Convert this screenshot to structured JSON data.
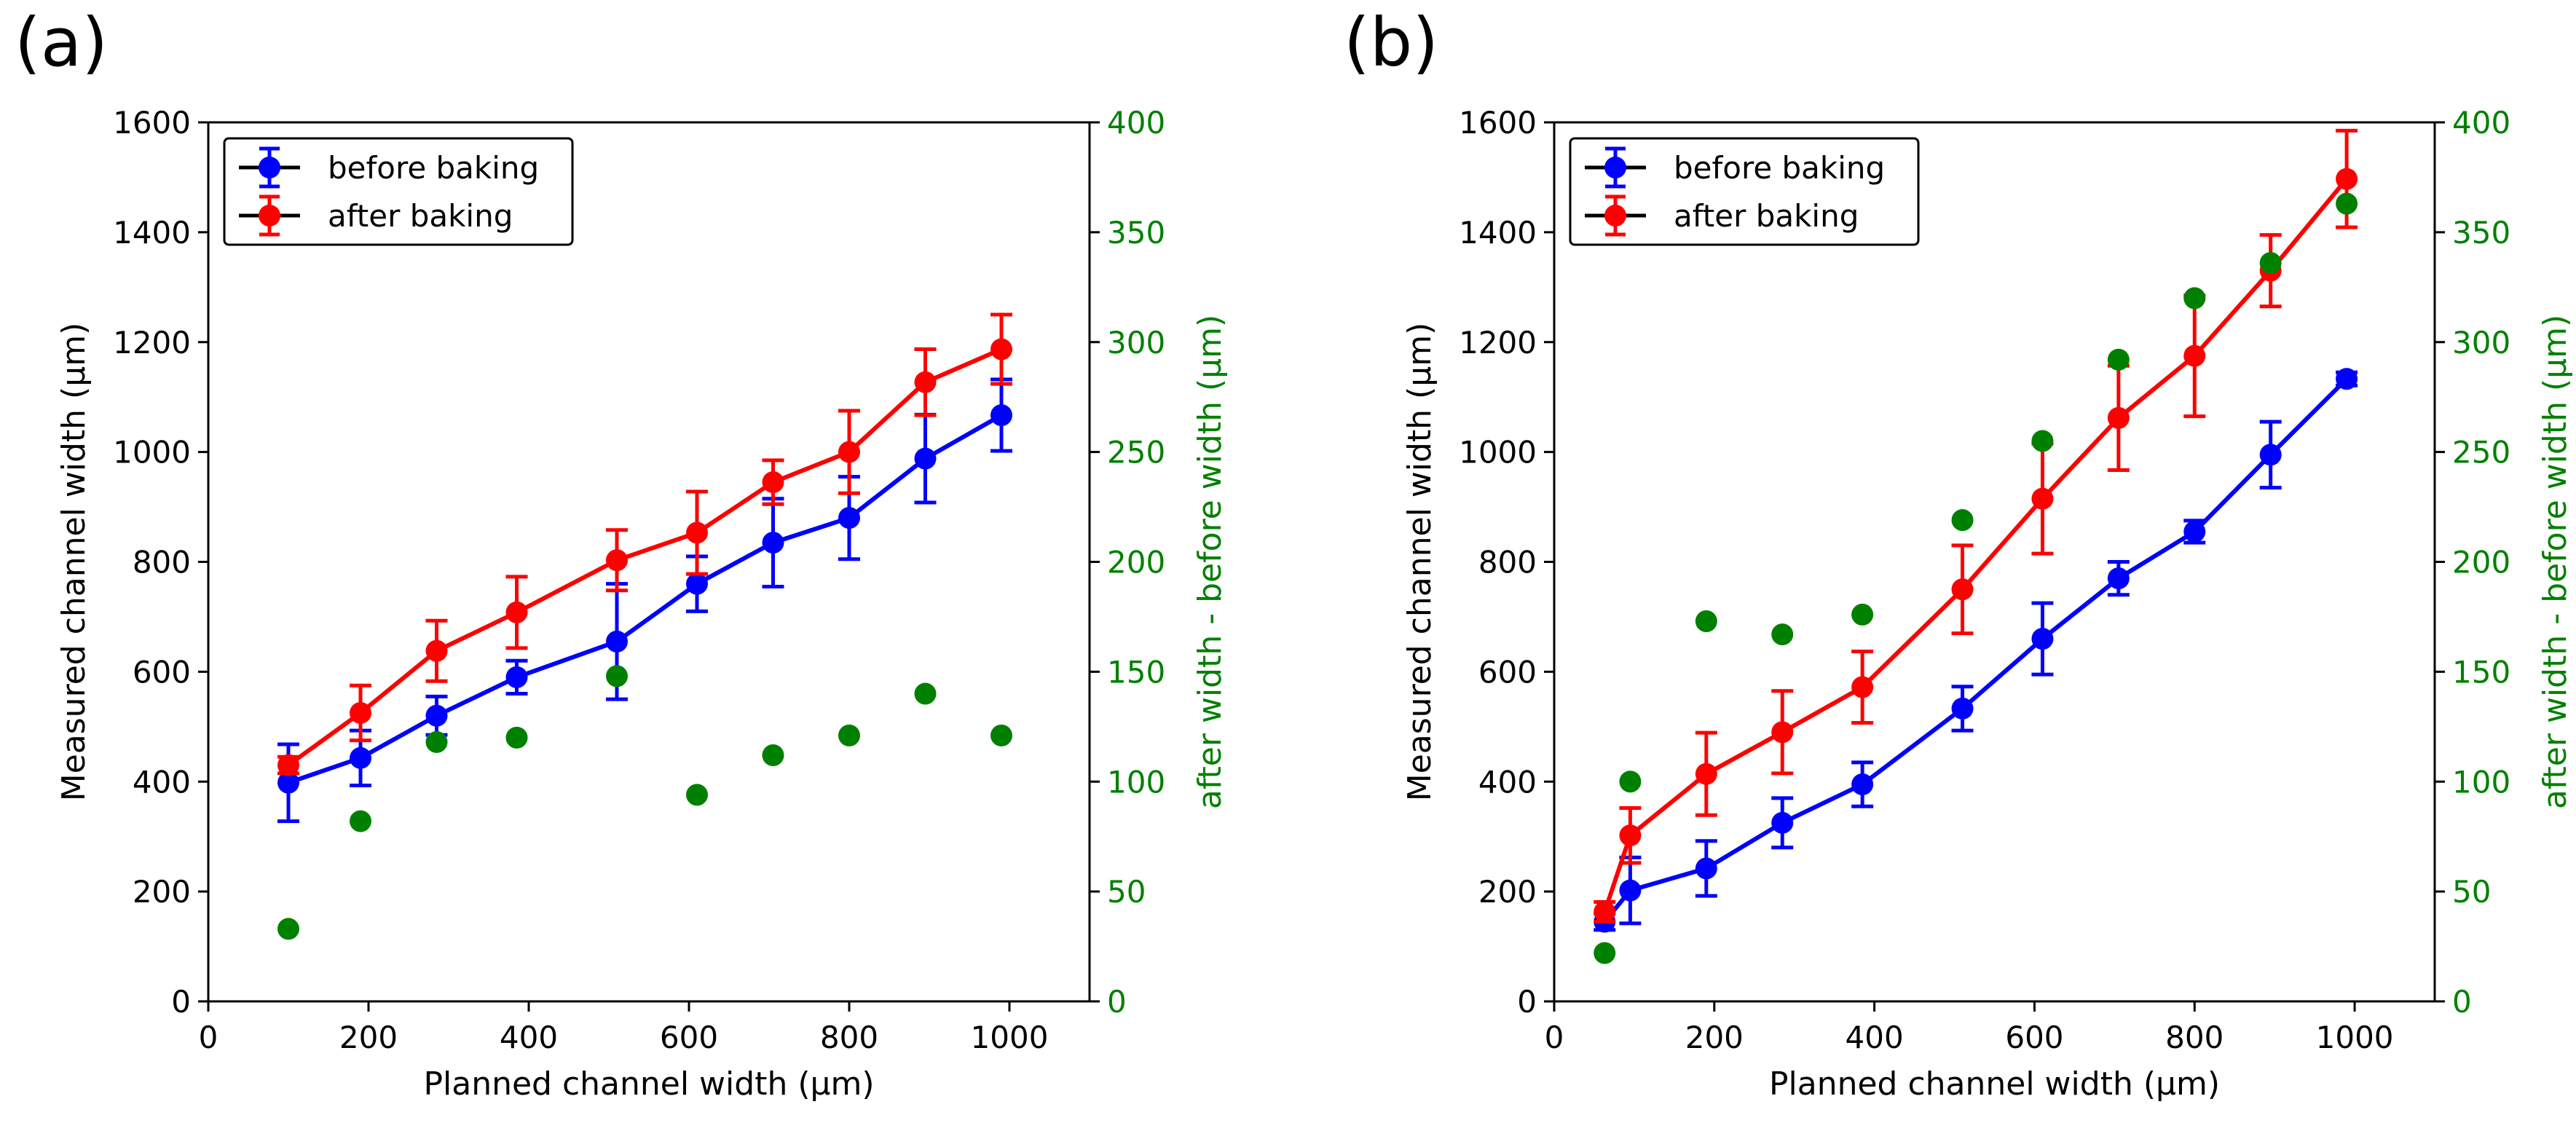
{
  "chart_data": [
    {
      "type": "line",
      "panel_label": "(a)",
      "xlabel": "Planned channel width (μm)",
      "ylabel": "Measured channel width (μm)",
      "y2label": "after width - before width (μm)",
      "xlim": [
        0,
        1100
      ],
      "ylim": [
        0,
        1600
      ],
      "y2lim": [
        0,
        400
      ],
      "xticks": [
        "0",
        "200",
        "400",
        "600",
        "800",
        "1000"
      ],
      "yticks": [
        "0",
        "200",
        "400",
        "600",
        "800",
        "1000",
        "1200",
        "1400",
        "1600"
      ],
      "y2ticks": [
        "0",
        "50",
        "100",
        "150",
        "200",
        "250",
        "300",
        "350",
        "400"
      ],
      "legend": {
        "position": "upper-left",
        "entries": [
          "before baking",
          "after baking"
        ]
      },
      "series": [
        {
          "name": "before baking",
          "color": "#0000ff",
          "axis": "left",
          "x": [
            100,
            190,
            285,
            385,
            510,
            610,
            705,
            800,
            895,
            990
          ],
          "y": [
            398,
            443,
            520,
            590,
            655,
            760,
            835,
            880,
            988,
            1067
          ],
          "err": [
            70,
            50,
            35,
            30,
            105,
            50,
            80,
            75,
            80,
            65
          ]
        },
        {
          "name": "after baking",
          "color": "#ff0000",
          "axis": "left",
          "x": [
            100,
            190,
            285,
            385,
            510,
            610,
            705,
            800,
            895,
            990
          ],
          "y": [
            430,
            525,
            638,
            708,
            803,
            853,
            945,
            1000,
            1127,
            1187
          ],
          "err": [
            15,
            50,
            55,
            65,
            55,
            75,
            40,
            75,
            60,
            63
          ]
        },
        {
          "name": "difference",
          "color": "#008000",
          "axis": "right",
          "x": [
            100,
            190,
            285,
            385,
            510,
            610,
            705,
            800,
            895,
            990
          ],
          "y": [
            33,
            82,
            118,
            120,
            148,
            94,
            112,
            121,
            140,
            121
          ]
        }
      ]
    },
    {
      "type": "line",
      "panel_label": "(b)",
      "xlabel": "Planned channel width (μm)",
      "ylabel": "Measured channel width (μm)",
      "y2label": "after width - before width (μm)",
      "xlim": [
        0,
        1100
      ],
      "ylim": [
        0,
        1600
      ],
      "y2lim": [
        0,
        400
      ],
      "xticks": [
        "0",
        "200",
        "400",
        "600",
        "800",
        "1000"
      ],
      "yticks": [
        "0",
        "200",
        "400",
        "600",
        "800",
        "1000",
        "1200",
        "1400",
        "1600"
      ],
      "y2ticks": [
        "0",
        "50",
        "100",
        "150",
        "200",
        "250",
        "300",
        "350",
        "400"
      ],
      "legend": {
        "position": "upper-left",
        "entries": [
          "before baking",
          "after baking"
        ]
      },
      "series": [
        {
          "name": "before baking",
          "color": "#0000ff",
          "axis": "left",
          "x": [
            63,
            95,
            190,
            285,
            385,
            510,
            610,
            705,
            800,
            895,
            990
          ],
          "y": [
            145,
            202,
            242,
            325,
            395,
            533,
            660,
            770,
            855,
            995,
            1133
          ],
          "err": [
            15,
            60,
            50,
            45,
            40,
            40,
            65,
            30,
            20,
            60,
            12
          ]
        },
        {
          "name": "after baking",
          "color": "#ff0000",
          "axis": "right-scaled-left",
          "x": [
            63,
            95,
            190,
            285,
            385,
            510,
            610,
            705,
            800,
            895,
            990
          ],
          "y": [
            163,
            302,
            414,
            490,
            572,
            750,
            915,
            1062,
            1175,
            1330,
            1497
          ],
          "err": [
            18,
            50,
            75,
            75,
            65,
            80,
            100,
            95,
            110,
            65,
            88
          ]
        },
        {
          "name": "difference",
          "color": "#008000",
          "axis": "right",
          "x": [
            63,
            95,
            190,
            285,
            385,
            510,
            610,
            705,
            800,
            895,
            990
          ],
          "y": [
            22,
            100,
            173,
            167,
            176,
            219,
            255,
            292,
            320,
            336,
            363
          ]
        }
      ]
    }
  ]
}
